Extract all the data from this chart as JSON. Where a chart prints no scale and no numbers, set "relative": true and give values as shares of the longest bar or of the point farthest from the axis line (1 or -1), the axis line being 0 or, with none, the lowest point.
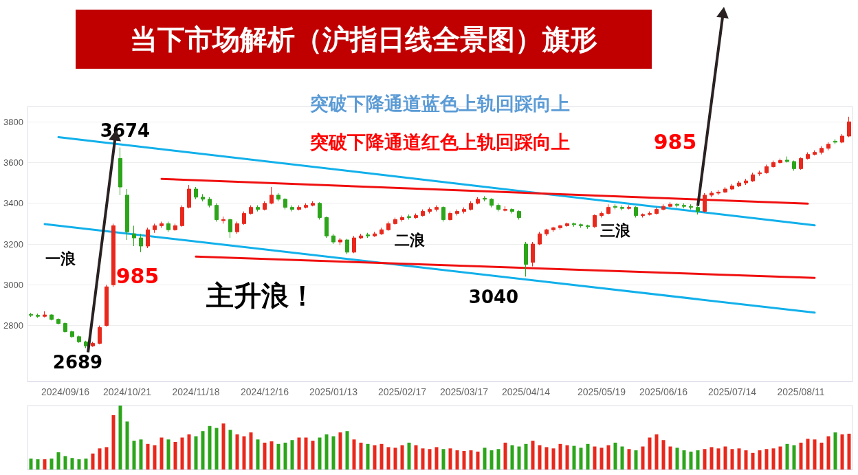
{
  "chart_data": [
    {
      "type": "candlestick",
      "title": "当下市场解析（沪指日线全景图）旗形",
      "annotations": [
        "3674",
        "2689",
        "985",
        "985",
        "一浪",
        "二浪",
        "三浪",
        "主升浪！",
        "3040",
        "突破下降通道蓝色上轨回踩向上",
        "突破下降通道红色上轨回踩向上"
      ],
      "categories": [
        null,
        null,
        null,
        null,
        null,
        "2024/09/16",
        null,
        null,
        null,
        null,
        null,
        null,
        null,
        null,
        "2024/10/21",
        null,
        null,
        null,
        null,
        null,
        null,
        null,
        null,
        null,
        "2024/11/18",
        null,
        null,
        null,
        null,
        null,
        null,
        null,
        null,
        null,
        "2024/12/16",
        null,
        null,
        null,
        null,
        null,
        null,
        null,
        null,
        null,
        "2025/01/13",
        null,
        null,
        null,
        null,
        null,
        null,
        null,
        null,
        null,
        "2025/02/17",
        null,
        null,
        null,
        null,
        null,
        null,
        null,
        null,
        "2025/03/17",
        null,
        null,
        null,
        null,
        null,
        null,
        null,
        null,
        "2025/04/14",
        null,
        null,
        null,
        null,
        null,
        null,
        null,
        null,
        null,
        null,
        "2025/05/19",
        null,
        null,
        null,
        null,
        null,
        null,
        null,
        null,
        "2025/06/16",
        null,
        null,
        null,
        null,
        null,
        null,
        null,
        null,
        null,
        "2025/07/14",
        null,
        null,
        null,
        null,
        null,
        null,
        null,
        null,
        null,
        "2025/08/11",
        null,
        null,
        null,
        null,
        null,
        null,
        null
      ],
      "ohlc": [
        [
          2855,
          2862,
          2842,
          2850
        ],
        [
          2850,
          2858,
          2838,
          2845
        ],
        [
          2845,
          2870,
          2840,
          2852
        ],
        [
          2852,
          2855,
          2825,
          2830
        ],
        [
          2830,
          2835,
          2805,
          2810
        ],
        [
          2810,
          2815,
          2765,
          2770
        ],
        [
          2770,
          2775,
          2740,
          2745
        ],
        [
          2745,
          2750,
          2715,
          2720
        ],
        [
          2720,
          2725,
          2689,
          2700
        ],
        [
          2700,
          2720,
          2695,
          2712
        ],
        [
          2712,
          2800,
          2708,
          2790
        ],
        [
          2800,
          3000,
          2795,
          2990
        ],
        [
          3000,
          3300,
          2990,
          3290
        ],
        [
          3620,
          3674,
          3440,
          3480
        ],
        [
          3440,
          3470,
          3220,
          3260
        ],
        [
          3250,
          3290,
          3190,
          3230
        ],
        [
          3230,
          3250,
          3160,
          3190
        ],
        [
          3190,
          3280,
          3180,
          3270
        ],
        [
          3270,
          3300,
          3255,
          3290
        ],
        [
          3290,
          3310,
          3280,
          3300
        ],
        [
          3300,
          3310,
          3260,
          3270
        ],
        [
          3270,
          3300,
          3265,
          3290
        ],
        [
          3290,
          3390,
          3285,
          3380
        ],
        [
          3380,
          3490,
          3375,
          3470
        ],
        [
          3470,
          3480,
          3420,
          3430
        ],
        [
          3430,
          3445,
          3410,
          3420
        ],
        [
          3420,
          3430,
          3380,
          3390
        ],
        [
          3390,
          3400,
          3310,
          3320
        ],
        [
          3315,
          3335,
          3300,
          3320
        ],
        [
          3320,
          3325,
          3230,
          3260
        ],
        [
          3260,
          3310,
          3250,
          3300
        ],
        [
          3300,
          3360,
          3295,
          3350
        ],
        [
          3350,
          3390,
          3345,
          3380
        ],
        [
          3380,
          3390,
          3360,
          3370
        ],
        [
          3370,
          3410,
          3365,
          3400
        ],
        [
          3400,
          3480,
          3395,
          3440
        ],
        [
          3440,
          3450,
          3410,
          3420
        ],
        [
          3420,
          3425,
          3370,
          3380
        ],
        [
          3380,
          3390,
          3360,
          3370
        ],
        [
          3370,
          3390,
          3365,
          3380
        ],
        [
          3380,
          3400,
          3375,
          3390
        ],
        [
          3390,
          3410,
          3385,
          3400
        ],
        [
          3400,
          3405,
          3320,
          3330
        ],
        [
          3330,
          3335,
          3230,
          3240
        ],
        [
          3240,
          3250,
          3200,
          3210
        ],
        [
          3210,
          3230,
          3195,
          3220
        ],
        [
          3220,
          3225,
          3150,
          3160
        ],
        [
          3160,
          3240,
          3155,
          3230
        ],
        [
          3230,
          3250,
          3225,
          3240
        ],
        [
          3245,
          3255,
          3230,
          3240
        ],
        [
          3240,
          3260,
          3235,
          3250
        ],
        [
          3250,
          3280,
          3245,
          3270
        ],
        [
          3270,
          3310,
          3265,
          3300
        ],
        [
          3300,
          3330,
          3295,
          3320
        ],
        [
          3320,
          3340,
          3310,
          3330
        ],
        [
          3335,
          3345,
          3320,
          3330
        ],
        [
          3330,
          3350,
          3325,
          3340
        ],
        [
          3340,
          3370,
          3335,
          3360
        ],
        [
          3360,
          3380,
          3350,
          3370
        ],
        [
          3370,
          3390,
          3360,
          3380
        ],
        [
          3380,
          3385,
          3310,
          3320
        ],
        [
          3320,
          3360,
          3315,
          3350
        ],
        [
          3350,
          3370,
          3340,
          3360
        ],
        [
          3360,
          3380,
          3350,
          3370
        ],
        [
          3370,
          3410,
          3365,
          3400
        ],
        [
          3400,
          3430,
          3395,
          3420
        ],
        [
          3425,
          3435,
          3410,
          3420
        ],
        [
          3420,
          3425,
          3380,
          3390
        ],
        [
          3390,
          3400,
          3360,
          3370
        ],
        [
          3365,
          3385,
          3360,
          3370
        ],
        [
          3370,
          3375,
          3350,
          3360
        ],
        [
          3360,
          3365,
          3320,
          3330
        ],
        [
          3200,
          3210,
          3040,
          3100
        ],
        [
          3110,
          3210,
          3090,
          3200
        ],
        [
          3200,
          3260,
          3195,
          3250
        ],
        [
          3250,
          3275,
          3240,
          3270
        ],
        [
          3270,
          3285,
          3260,
          3280
        ],
        [
          3280,
          3295,
          3270,
          3290
        ],
        [
          3290,
          3305,
          3285,
          3300
        ],
        [
          3300,
          3305,
          3285,
          3295
        ],
        [
          3295,
          3300,
          3280,
          3290
        ],
        [
          3290,
          3295,
          3275,
          3285
        ],
        [
          3285,
          3345,
          3280,
          3340
        ],
        [
          3340,
          3360,
          3330,
          3350
        ],
        [
          3350,
          3395,
          3345,
          3380
        ],
        [
          3385,
          3395,
          3370,
          3380
        ],
        [
          3380,
          3390,
          3365,
          3375
        ],
        [
          3375,
          3390,
          3370,
          3380
        ],
        [
          3380,
          3385,
          3330,
          3340
        ],
        [
          3340,
          3350,
          3330,
          3345
        ],
        [
          3345,
          3360,
          3340,
          3350
        ],
        [
          3350,
          3380,
          3345,
          3370
        ],
        [
          3370,
          3395,
          3365,
          3385
        ],
        [
          3385,
          3405,
          3380,
          3395
        ],
        [
          3395,
          3400,
          3380,
          3390
        ],
        [
          3390,
          3400,
          3375,
          3385
        ],
        [
          3385,
          3395,
          3370,
          3380
        ],
        [
          3380,
          3385,
          3345,
          3360
        ],
        [
          3360,
          3450,
          3355,
          3440
        ],
        [
          3440,
          3460,
          3430,
          3450
        ],
        [
          3450,
          3465,
          3440,
          3455
        ],
        [
          3455,
          3480,
          3450,
          3470
        ],
        [
          3470,
          3495,
          3465,
          3485
        ],
        [
          3485,
          3510,
          3480,
          3500
        ],
        [
          3500,
          3520,
          3490,
          3510
        ],
        [
          3510,
          3550,
          3505,
          3540
        ],
        [
          3545,
          3560,
          3535,
          3550
        ],
        [
          3550,
          3590,
          3545,
          3580
        ],
        [
          3580,
          3610,
          3575,
          3600
        ],
        [
          3600,
          3620,
          3595,
          3610
        ],
        [
          3612,
          3630,
          3600,
          3605
        ],
        [
          3605,
          3610,
          3560,
          3570
        ],
        [
          3570,
          3625,
          3565,
          3620
        ],
        [
          3620,
          3650,
          3615,
          3640
        ],
        [
          3640,
          3660,
          3635,
          3650
        ],
        [
          3650,
          3680,
          3640,
          3670
        ],
        [
          3670,
          3700,
          3660,
          3690
        ],
        [
          3705,
          3715,
          3690,
          3700
        ],
        [
          3700,
          3740,
          3695,
          3730
        ],
        [
          3730,
          3825,
          3725,
          3800
        ]
      ],
      "colors": [
        "#2ca51a",
        "#2ca51a",
        "#e8281c",
        "#2ca51a",
        "#2ca51a",
        "#2ca51a",
        "#2ca51a",
        "#2ca51a",
        "#2ca51a",
        "#e8281c",
        "#e8281c",
        "#e8281c",
        "#e8281c",
        "#2ca51a",
        "#2ca51a",
        "#2ca51a",
        "#2ca51a",
        "#e8281c",
        "#e8281c",
        "#e8281c",
        "#2ca51a",
        "#e8281c",
        "#e8281c",
        "#e8281c",
        "#2ca51a",
        "#2ca51a",
        "#2ca51a",
        "#2ca51a",
        "#e8281c",
        "#2ca51a",
        "#e8281c",
        "#e8281c",
        "#e8281c",
        "#2ca51a",
        "#e8281c",
        "#e8281c",
        "#2ca51a",
        "#2ca51a",
        "#2ca51a",
        "#e8281c",
        "#e8281c",
        "#e8281c",
        "#2ca51a",
        "#2ca51a",
        "#2ca51a",
        "#e8281c",
        "#2ca51a",
        "#e8281c",
        "#e8281c",
        "#2ca51a",
        "#e8281c",
        "#e8281c",
        "#e8281c",
        "#e8281c",
        "#e8281c",
        "#2ca51a",
        "#e8281c",
        "#e8281c",
        "#e8281c",
        "#e8281c",
        "#2ca51a",
        "#e8281c",
        "#e8281c",
        "#e8281c",
        "#e8281c",
        "#e8281c",
        "#2ca51a",
        "#2ca51a",
        "#2ca51a",
        "#e8281c",
        "#2ca51a",
        "#2ca51a",
        "#2ca51a",
        "#e8281c",
        "#e8281c",
        "#e8281c",
        "#e8281c",
        "#e8281c",
        "#e8281c",
        "#2ca51a",
        "#2ca51a",
        "#2ca51a",
        "#e8281c",
        "#e8281c",
        "#e8281c",
        "#2ca51a",
        "#2ca51a",
        "#e8281c",
        "#2ca51a",
        "#e8281c",
        "#e8281c",
        "#e8281c",
        "#e8281c",
        "#e8281c",
        "#2ca51a",
        "#2ca51a",
        "#2ca51a",
        "#2ca51a",
        "#e8281c",
        "#e8281c",
        "#e8281c",
        "#e8281c",
        "#e8281c",
        "#e8281c",
        "#e8281c",
        "#e8281c",
        "#e8281c",
        "#e8281c",
        "#e8281c",
        "#e8281c",
        "#2ca51a",
        "#2ca51a",
        "#e8281c",
        "#e8281c",
        "#e8281c",
        "#e8281c",
        "#e8281c",
        "#2ca51a",
        "#e8281c",
        "#e8281c"
      ],
      "series": [
        {
          "type": "line",
          "color": "#12b0ea",
          "values": [
            null,
            null,
            null,
            null,
            3725,
            null,
            null,
            null,
            null,
            null,
            null,
            null,
            null,
            null,
            null,
            null,
            null,
            null,
            null,
            null,
            null,
            null,
            null,
            null,
            null,
            null,
            null,
            null,
            null,
            null,
            null,
            null,
            null,
            null,
            null,
            null,
            null,
            null,
            null,
            null,
            null,
            null,
            null,
            null,
            null,
            null,
            null,
            null,
            null,
            null,
            null,
            null,
            null,
            null,
            null,
            null,
            null,
            null,
            null,
            null,
            null,
            null,
            null,
            null,
            null,
            null,
            null,
            null,
            null,
            null,
            null,
            null,
            null,
            null,
            null,
            null,
            null,
            null,
            null,
            null,
            null,
            null,
            null,
            null,
            null,
            null,
            null,
            null,
            null,
            null,
            null,
            null,
            null,
            null,
            null,
            null,
            null,
            null,
            null,
            null,
            null,
            null,
            null,
            null,
            null,
            null,
            null,
            null,
            null,
            null,
            null,
            null,
            null,
            null,
            3292,
            null,
            null,
            null,
            null,
            null
          ]
        },
        {
          "type": "line",
          "color": "#12b0ea",
          "values": [
            null,
            null,
            3298,
            null,
            null,
            null,
            null,
            null,
            null,
            null,
            null,
            null,
            null,
            null,
            null,
            null,
            null,
            null,
            null,
            null,
            null,
            null,
            null,
            null,
            null,
            null,
            null,
            null,
            null,
            null,
            null,
            null,
            null,
            null,
            null,
            null,
            null,
            null,
            null,
            null,
            null,
            null,
            null,
            null,
            null,
            null,
            null,
            null,
            null,
            null,
            null,
            null,
            null,
            null,
            null,
            null,
            null,
            null,
            null,
            null,
            null,
            null,
            null,
            null,
            null,
            null,
            null,
            null,
            null,
            null,
            null,
            null,
            null,
            null,
            null,
            null,
            null,
            null,
            null,
            null,
            null,
            null,
            null,
            null,
            null,
            null,
            null,
            null,
            null,
            null,
            null,
            null,
            null,
            null,
            null,
            null,
            null,
            null,
            null,
            null,
            null,
            null,
            null,
            null,
            null,
            null,
            null,
            null,
            null,
            null,
            null,
            null,
            null,
            null,
            2863,
            null,
            null,
            null,
            null,
            null
          ]
        },
        {
          "type": "line",
          "color": "#f01010",
          "values": [
            null,
            null,
            null,
            null,
            null,
            null,
            null,
            null,
            null,
            null,
            null,
            null,
            null,
            null,
            null,
            null,
            null,
            null,
            null,
            3520,
            null,
            null,
            null,
            null,
            null,
            null,
            null,
            null,
            null,
            null,
            null,
            null,
            null,
            null,
            null,
            null,
            null,
            null,
            null,
            null,
            null,
            null,
            null,
            null,
            null,
            null,
            null,
            null,
            null,
            null,
            null,
            null,
            null,
            null,
            null,
            null,
            null,
            null,
            null,
            null,
            null,
            null,
            null,
            null,
            null,
            null,
            null,
            null,
            null,
            null,
            null,
            null,
            null,
            null,
            null,
            null,
            null,
            null,
            null,
            null,
            null,
            null,
            null,
            null,
            null,
            null,
            null,
            null,
            null,
            null,
            null,
            null,
            null,
            null,
            null,
            null,
            null,
            null,
            null,
            null,
            null,
            null,
            null,
            null,
            null,
            null,
            null,
            null,
            null,
            null,
            null,
            null,
            null,
            3398,
            null,
            null,
            null,
            null,
            null,
            null
          ]
        },
        {
          "type": "line",
          "color": "#f01010",
          "values": [
            null,
            null,
            null,
            null,
            null,
            null,
            null,
            null,
            null,
            null,
            null,
            null,
            null,
            null,
            null,
            null,
            null,
            null,
            null,
            null,
            null,
            null,
            null,
            null,
            3138,
            null,
            null,
            null,
            null,
            null,
            null,
            null,
            null,
            null,
            null,
            null,
            null,
            null,
            null,
            null,
            null,
            null,
            null,
            null,
            null,
            null,
            null,
            null,
            null,
            null,
            null,
            null,
            null,
            null,
            null,
            null,
            null,
            null,
            null,
            null,
            null,
            null,
            null,
            null,
            null,
            null,
            null,
            null,
            null,
            null,
            null,
            null,
            null,
            null,
            null,
            null,
            null,
            null,
            null,
            null,
            null,
            null,
            null,
            null,
            null,
            null,
            null,
            null,
            null,
            null,
            null,
            null,
            null,
            null,
            null,
            null,
            null,
            null,
            null,
            null,
            null,
            null,
            null,
            null,
            null,
            null,
            null,
            null,
            null,
            null,
            null,
            null,
            null,
            null,
            3034,
            null,
            null,
            null,
            null,
            null
          ]
        }
      ],
      "ylim": [
        2525,
        3875
      ],
      "yticks": [
        2800,
        3000,
        3200,
        3400,
        3600,
        3800
      ],
      "grid": "y",
      "marker": "none",
      "line_style": "solid"
    },
    {
      "type": "bar",
      "relative": true,
      "categories": [
        null,
        null,
        null,
        null,
        null,
        null,
        null,
        null,
        null,
        null,
        null,
        null,
        null,
        null,
        null,
        null,
        null,
        null,
        null,
        null,
        null,
        null,
        null,
        null,
        null,
        null,
        null,
        null,
        null,
        null,
        null,
        null,
        null,
        null,
        null,
        null,
        null,
        null,
        null,
        null,
        null,
        null,
        null,
        null,
        null,
        null,
        null,
        null,
        null,
        null,
        null,
        null,
        null,
        null,
        null,
        null,
        null,
        null,
        null,
        null,
        null,
        null,
        null,
        null,
        null,
        null,
        null,
        null,
        null,
        null,
        null,
        null,
        null,
        null,
        null,
        null,
        null,
        null,
        null,
        null,
        null,
        null,
        null,
        null,
        null,
        null,
        null,
        null,
        null,
        null,
        null,
        null,
        null,
        null,
        null,
        null,
        null,
        null,
        null,
        null,
        null,
        null,
        null,
        null,
        null,
        null,
        null,
        null,
        null,
        null,
        null,
        null,
        null,
        null,
        null,
        null,
        null,
        null,
        null,
        null
      ],
      "values": [
        0.17,
        0.16,
        0.16,
        0.17,
        0.27,
        0.21,
        0.18,
        0.16,
        0.17,
        0.25,
        0.33,
        0.35,
        0.85,
        1,
        0.75,
        0.45,
        0.47,
        0.4,
        0.38,
        0.5,
        0.47,
        0.43,
        0.5,
        0.55,
        0.52,
        0.6,
        0.68,
        0.65,
        0.72,
        0.62,
        0.55,
        0.52,
        0.58,
        0.47,
        0.42,
        0.44,
        0.4,
        0.42,
        0.46,
        0.5,
        0.5,
        0.45,
        0.5,
        0.55,
        0.52,
        0.58,
        0.6,
        0.47,
        0.42,
        0.4,
        0.38,
        0.4,
        0.35,
        0.34,
        0.38,
        0.42,
        0.38,
        0.33,
        0.32,
        0.35,
        0.32,
        0.33,
        0.3,
        0.29,
        0.3,
        0.28,
        0.34,
        0.3,
        0.32,
        0.42,
        0.38,
        0.36,
        0.4,
        0.45,
        0.38,
        0.35,
        0.33,
        0.4,
        0.38,
        0.37,
        0.34,
        0.4,
        0.36,
        0.34,
        0.38,
        0.42,
        0.36,
        0.32,
        0.3,
        0.36,
        0.5,
        0.55,
        0.46,
        0.36,
        0.34,
        0.3,
        0.28,
        0.3,
        0.32,
        0.35,
        0.33,
        0.36,
        0.32,
        0.33,
        0.3,
        0.26,
        0.3,
        0.32,
        0.33,
        0.36,
        0.4,
        0.38,
        0.42,
        0.48,
        0.47,
        0.42,
        0.52,
        0.58,
        0.55,
        0.56
      ],
      "colors": [
        "#2ca51a",
        "#2ca51a",
        "#e8281c",
        "#2ca51a",
        "#2ca51a",
        "#2ca51a",
        "#2ca51a",
        "#2ca51a",
        "#2ca51a",
        "#e8281c",
        "#e8281c",
        "#e8281c",
        "#e8281c",
        "#2ca51a",
        "#2ca51a",
        "#2ca51a",
        "#2ca51a",
        "#e8281c",
        "#e8281c",
        "#e8281c",
        "#2ca51a",
        "#e8281c",
        "#e8281c",
        "#e8281c",
        "#2ca51a",
        "#2ca51a",
        "#2ca51a",
        "#2ca51a",
        "#e8281c",
        "#2ca51a",
        "#e8281c",
        "#e8281c",
        "#e8281c",
        "#2ca51a",
        "#e8281c",
        "#e8281c",
        "#2ca51a",
        "#2ca51a",
        "#2ca51a",
        "#e8281c",
        "#e8281c",
        "#e8281c",
        "#2ca51a",
        "#2ca51a",
        "#2ca51a",
        "#e8281c",
        "#2ca51a",
        "#e8281c",
        "#e8281c",
        "#2ca51a",
        "#e8281c",
        "#e8281c",
        "#e8281c",
        "#e8281c",
        "#e8281c",
        "#2ca51a",
        "#e8281c",
        "#e8281c",
        "#e8281c",
        "#e8281c",
        "#2ca51a",
        "#e8281c",
        "#e8281c",
        "#e8281c",
        "#e8281c",
        "#e8281c",
        "#2ca51a",
        "#2ca51a",
        "#2ca51a",
        "#e8281c",
        "#2ca51a",
        "#2ca51a",
        "#2ca51a",
        "#e8281c",
        "#e8281c",
        "#e8281c",
        "#e8281c",
        "#e8281c",
        "#e8281c",
        "#2ca51a",
        "#2ca51a",
        "#2ca51a",
        "#e8281c",
        "#e8281c",
        "#e8281c",
        "#2ca51a",
        "#2ca51a",
        "#e8281c",
        "#2ca51a",
        "#e8281c",
        "#e8281c",
        "#e8281c",
        "#e8281c",
        "#e8281c",
        "#2ca51a",
        "#2ca51a",
        "#2ca51a",
        "#2ca51a",
        "#e8281c",
        "#e8281c",
        "#e8281c",
        "#e8281c",
        "#e8281c",
        "#e8281c",
        "#e8281c",
        "#e8281c",
        "#e8281c",
        "#e8281c",
        "#e8281c",
        "#e8281c",
        "#2ca51a",
        "#2ca51a",
        "#e8281c",
        "#e8281c",
        "#e8281c",
        "#e8281c",
        "#e8281c",
        "#2ca51a",
        "#e8281c",
        "#e8281c"
      ]
    }
  ]
}
